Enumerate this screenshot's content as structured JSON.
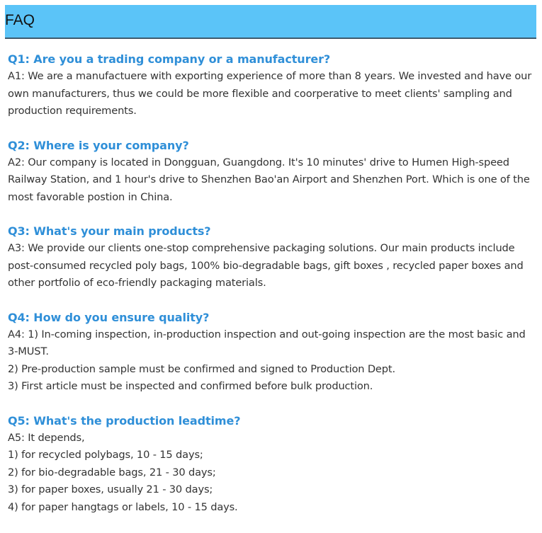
{
  "header": {
    "title": "FAQ"
  },
  "faq": [
    {
      "question": "Q1: Are you a trading company or a manufacturer?",
      "answer": [
        "A1: We are a manufactuere with exporting experience of more than 8 years. We invested and have our own manufacturers, thus we could be more flexible and coorperative to meet clients' sampling and production requirements."
      ]
    },
    {
      "question": "Q2: Where is your company?",
      "answer": [
        "A2: Our company is located in Dongguan, Guangdong. It's 10 minutes' drive to Humen High-speed Railway Station, and 1 hour's drive to Shenzhen Bao'an Airport and Shenzhen Port. Which is one of the most favorable postion in China."
      ]
    },
    {
      "question": "Q3: What's your main products?",
      "answer": [
        "A3: We provide our clients one-stop comprehensive packaging solutions. Our main products include post-consumed recycled poly bags, 100% bio-degradable bags, gift boxes , recycled paper boxes and other portfolio of eco-friendly packaging materials."
      ]
    },
    {
      "question": "Q4: How do you ensure quality?",
      "answer": [
        "A4: 1) In-coming inspection, in-production inspection and out-going inspection are the most basic and 3-MUST.",
        "2) Pre-production sample must be confirmed and signed to Production Dept.",
        "3) First article must be inspected and confirmed before bulk production."
      ]
    },
    {
      "question": "Q5: What's the production leadtime?",
      "answer": [
        "A5: It depends,",
        "1) for recycled polybags, 10 - 15 days;",
        "2) for bio-degradable bags, 21 - 30 days;",
        "3) for paper boxes, usually 21 - 30 days;",
        "4) for paper hangtags or labels, 10 - 15 days."
      ]
    }
  ]
}
